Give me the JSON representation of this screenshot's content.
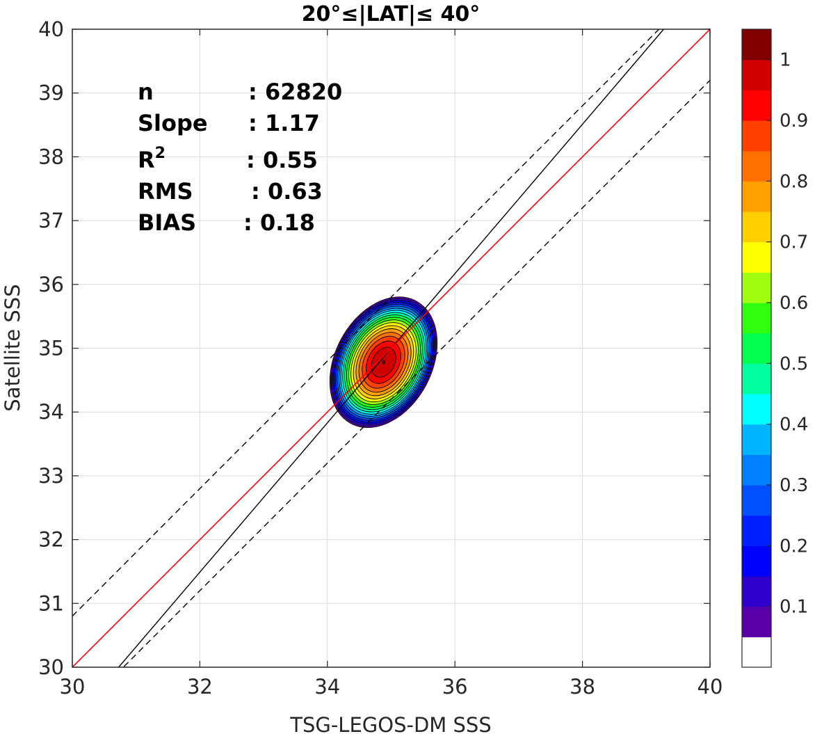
{
  "chart_data": {
    "type": "heatmap",
    "title": "20°≤|LAT|≤ 40°",
    "xlabel": "TSG-LEGOS-DM SSS",
    "ylabel": "Satellite SSS",
    "xlim": [
      30,
      40
    ],
    "ylim": [
      30,
      40
    ],
    "xticks": [
      "30",
      "32",
      "34",
      "36",
      "38",
      "40"
    ],
    "yticks": [
      "30",
      "31",
      "32",
      "33",
      "34",
      "35",
      "36",
      "37",
      "38",
      "39",
      "40"
    ],
    "grid": true,
    "stats": [
      {
        "label": "n",
        "sep": ":",
        "value": "62820"
      },
      {
        "label": "Slope",
        "sep": ":",
        "value": "1.17"
      },
      {
        "label": "R",
        "sup": "2",
        "sep": ":",
        "value": "0.55"
      },
      {
        "label": "RMS",
        "sep": ":",
        "value": "0.63"
      },
      {
        "label": "BIAS",
        "sep": ":",
        "value": "0.18"
      }
    ],
    "lines": {
      "one_to_one": {
        "color": "#ff0000",
        "slope": 1,
        "intercept": 0
      },
      "regression": {
        "color": "#000000",
        "slope": 1.17,
        "intercept": -5.95
      },
      "rms_bounds": {
        "color": "#000000",
        "style": "dashed",
        "offset": 0.8
      }
    },
    "density": {
      "center": [
        34.88,
        34.78
      ],
      "x_extent": [
        34.1,
        35.65
      ],
      "y_extent": [
        33.85,
        35.7
      ],
      "peak": 1.0
    },
    "colorbar": {
      "ticks": [
        "0.1",
        "0.2",
        "0.3",
        "0.4",
        "0.5",
        "0.6",
        "0.7",
        "0.8",
        "0.9",
        "1"
      ],
      "levels": [
        0.05,
        0.1,
        0.15,
        0.2,
        0.25,
        0.3,
        0.35,
        0.4,
        0.45,
        0.5,
        0.55,
        0.6,
        0.65,
        0.7,
        0.75,
        0.8,
        0.85,
        0.9,
        0.95,
        1.0
      ],
      "colors": [
        "#ffffff",
        "#5a00aa",
        "#2d00cc",
        "#0000ff",
        "#0020ff",
        "#0050ff",
        "#0080ff",
        "#00b4ff",
        "#00ffff",
        "#00ffa0",
        "#00ff50",
        "#30ff10",
        "#a0ff10",
        "#ffff00",
        "#ffd000",
        "#ffa000",
        "#ff7000",
        "#ff4000",
        "#ff0000",
        "#d00000",
        "#800000"
      ]
    }
  }
}
